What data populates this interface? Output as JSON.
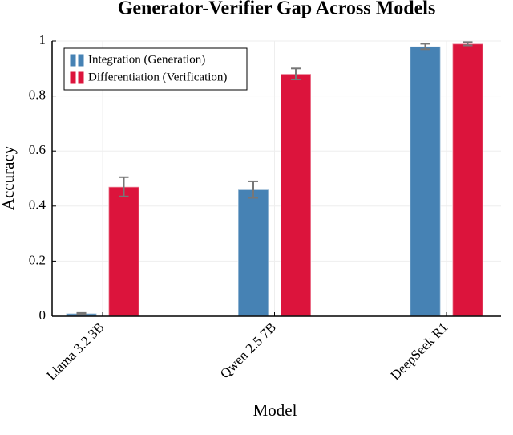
{
  "chart_data": {
    "type": "bar",
    "title": "Generator-Verifier Gap Across Models",
    "x_label": "Model",
    "y_label": "Accuracy",
    "categories": [
      "Llama 3.2 3B",
      "Qwen 2.5 7B",
      "DeepSeek R1"
    ],
    "series": [
      {
        "name": "Integration (Generation)",
        "color": "#4682b4",
        "values": [
          0.01,
          0.46,
          0.98
        ],
        "errors": [
          0.002,
          0.03,
          0.01
        ]
      },
      {
        "name": "Differentiation (Verification)",
        "color": "#dc143c",
        "values": [
          0.47,
          0.88,
          0.99
        ],
        "errors": [
          0.035,
          0.02,
          0.006
        ]
      }
    ],
    "ylim": [
      0,
      1
    ],
    "yticks": [
      0,
      0.2,
      0.4,
      0.6,
      0.8,
      1
    ],
    "grid": true,
    "legend": "upper left"
  }
}
